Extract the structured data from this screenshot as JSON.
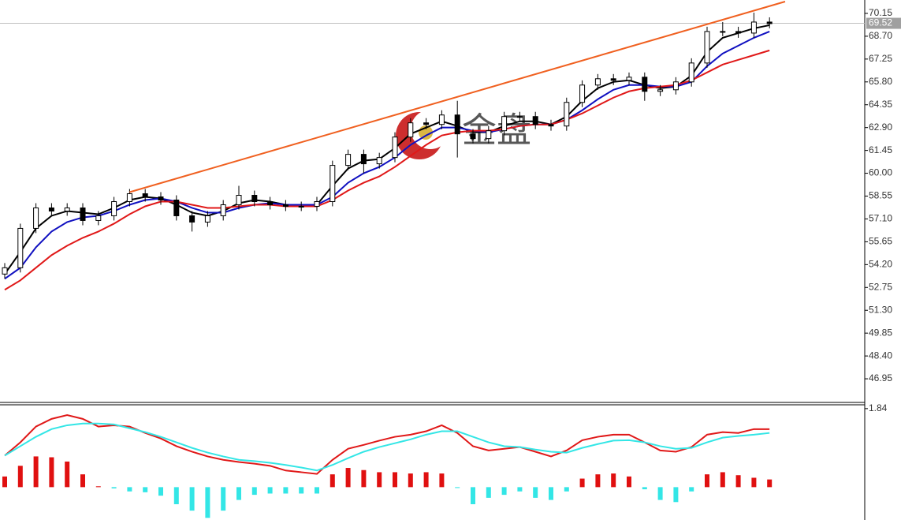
{
  "chart_data": [
    {
      "type": "candlestick",
      "open": [
        53.6,
        54.0,
        56.5,
        57.8,
        57.6,
        57.8,
        57.0,
        57.3,
        58.2,
        58.7,
        58.5,
        58.3,
        57.3,
        56.9,
        57.3,
        58.0,
        58.6,
        58.2,
        58.0,
        57.9,
        57.9,
        58.2,
        60.5,
        61.2,
        60.6,
        61.0,
        62.3,
        63.2,
        63.1,
        63.7,
        62.5,
        62.2,
        62.7,
        63.6,
        63.6,
        63.1,
        63.0,
        64.5,
        65.6,
        66.0,
        65.9,
        66.1,
        65.2,
        65.3,
        65.8,
        67.0,
        69.0,
        69.0,
        68.9,
        69.6
      ],
      "high": [
        54.3,
        56.8,
        58.1,
        58.1,
        58.1,
        58.1,
        57.6,
        58.5,
        59.0,
        59.0,
        58.8,
        58.6,
        57.6,
        57.6,
        58.3,
        59.2,
        58.9,
        58.5,
        58.3,
        58.2,
        58.5,
        60.8,
        61.5,
        61.5,
        61.3,
        62.6,
        63.5,
        63.5,
        64.0,
        64.6,
        62.8,
        63.0,
        63.9,
        63.9,
        63.9,
        63.4,
        64.8,
        65.9,
        66.3,
        66.3,
        66.4,
        66.4,
        65.6,
        66.1,
        67.3,
        69.3,
        69.6,
        69.3,
        70.2,
        69.9
      ],
      "low": [
        53.3,
        53.7,
        56.2,
        57.3,
        57.3,
        56.7,
        56.7,
        57.0,
        57.9,
        58.2,
        58.0,
        57.0,
        56.3,
        56.6,
        57.0,
        57.7,
        57.9,
        57.7,
        57.6,
        57.6,
        57.6,
        57.9,
        60.2,
        60.0,
        60.3,
        60.7,
        62.0,
        62.8,
        62.8,
        61.0,
        61.9,
        61.9,
        62.4,
        63.3,
        62.8,
        62.7,
        62.7,
        64.2,
        65.3,
        65.6,
        65.6,
        64.6,
        64.9,
        65.0,
        65.5,
        66.7,
        68.7,
        68.6,
        68.6,
        69.2
      ],
      "close": [
        54.0,
        56.5,
        57.8,
        57.6,
        57.8,
        57.0,
        57.3,
        58.2,
        58.7,
        58.5,
        58.3,
        57.3,
        56.9,
        57.3,
        58.0,
        58.6,
        58.2,
        58.0,
        57.9,
        57.9,
        58.2,
        60.5,
        61.2,
        60.6,
        61.0,
        62.3,
        63.2,
        63.1,
        63.7,
        62.5,
        62.2,
        62.7,
        63.6,
        63.6,
        63.1,
        63.0,
        64.5,
        65.6,
        66.0,
        65.9,
        66.1,
        65.2,
        65.3,
        65.8,
        67.0,
        69.0,
        69.0,
        68.9,
        69.6,
        69.5
      ],
      "lines": [
        {
          "color": "#000000",
          "values": [
            53.6,
            55.0,
            56.5,
            57.3,
            57.6,
            57.5,
            57.4,
            57.8,
            58.3,
            58.5,
            58.4,
            58.0,
            57.5,
            57.3,
            57.6,
            58.1,
            58.3,
            58.2,
            58.0,
            57.9,
            58.0,
            59.2,
            60.3,
            60.8,
            60.9,
            61.6,
            62.5,
            62.9,
            63.3,
            63.0,
            62.6,
            62.6,
            63.0,
            63.3,
            63.3,
            63.1,
            63.6,
            64.6,
            65.4,
            65.8,
            65.9,
            65.6,
            65.4,
            65.5,
            66.2,
            67.7,
            68.6,
            68.9,
            69.2,
            69.4
          ]
        },
        {
          "color": "#1010c0",
          "values": [
            53.3,
            54.0,
            55.3,
            56.3,
            56.9,
            57.2,
            57.3,
            57.6,
            58.0,
            58.3,
            58.4,
            58.2,
            57.8,
            57.5,
            57.5,
            57.8,
            58.0,
            58.1,
            58.0,
            58.0,
            58.0,
            58.5,
            59.4,
            60.0,
            60.4,
            61.0,
            61.8,
            62.4,
            62.9,
            62.9,
            62.7,
            62.6,
            62.8,
            63.0,
            63.1,
            63.1,
            63.4,
            64.0,
            64.7,
            65.3,
            65.6,
            65.6,
            65.5,
            65.5,
            65.8,
            66.8,
            67.6,
            68.1,
            68.6,
            69.0
          ]
        },
        {
          "color": "#e01818",
          "values": [
            52.6,
            53.2,
            54.0,
            54.8,
            55.4,
            55.9,
            56.3,
            56.8,
            57.4,
            57.9,
            58.2,
            58.2,
            58.0,
            57.8,
            57.8,
            57.9,
            58.0,
            58.0,
            57.9,
            57.9,
            57.9,
            58.3,
            58.9,
            59.4,
            59.8,
            60.4,
            61.1,
            61.8,
            62.4,
            62.6,
            62.7,
            62.7,
            62.8,
            63.0,
            63.1,
            63.1,
            63.4,
            63.8,
            64.3,
            64.8,
            65.2,
            65.4,
            65.5,
            65.6,
            65.9,
            66.4,
            66.9,
            67.2,
            67.5,
            67.8
          ]
        }
      ],
      "trendline": {
        "color": "#f06020",
        "x": [
          8,
          50
        ],
        "y": [
          58.8,
          70.9
        ]
      },
      "last_price": 69.52,
      "watermark": "金盘",
      "ylim": [
        45.45,
        71.0
      ],
      "yticks": [
        70.15,
        {
          "value": 68.7,
          "label": "68.70"
        },
        67.25,
        {
          "value": 65.8,
          "label": "65.80"
        },
        64.35,
        {
          "value": 62.9,
          "label": "62.90"
        },
        61.45,
        {
          "value": 60,
          "label": "60.00"
        },
        58.55,
        {
          "value": 57.1,
          "label": "57.10"
        },
        55.65,
        {
          "value": 54.2,
          "label": "54.20"
        },
        52.75,
        {
          "value": 51.3,
          "label": "51.30"
        },
        49.85,
        {
          "value": 48.4,
          "label": "48.40"
        },
        46.95
      ]
    },
    {
      "type": "macd",
      "histogram": [
        0.25,
        0.5,
        0.72,
        0.7,
        0.6,
        0.3,
        0.02,
        -0.03,
        -0.1,
        -0.12,
        -0.2,
        -0.4,
        -0.55,
        -0.72,
        -0.55,
        -0.3,
        -0.18,
        -0.15,
        -0.15,
        -0.15,
        -0.15,
        0.3,
        0.45,
        0.4,
        0.35,
        0.35,
        0.32,
        0.35,
        0.32,
        -0.02,
        -0.4,
        -0.25,
        -0.18,
        -0.1,
        -0.25,
        -0.3,
        -0.1,
        0.2,
        0.3,
        0.32,
        0.25,
        -0.05,
        -0.3,
        -0.35,
        -0.1,
        0.3,
        0.35,
        0.28,
        0.22,
        0.18
      ],
      "colors": {
        "positive": "#e01010",
        "negative": "#33e6e6"
      },
      "lines": [
        {
          "color": "#e01818",
          "values": [
            0.74,
            1.05,
            1.42,
            1.6,
            1.69,
            1.6,
            1.42,
            1.45,
            1.42,
            1.27,
            1.14,
            0.96,
            0.83,
            0.72,
            0.64,
            0.59,
            0.55,
            0.5,
            0.39,
            0.35,
            0.31,
            0.64,
            0.9,
            0.99,
            1.09,
            1.18,
            1.23,
            1.31,
            1.45,
            1.27,
            0.96,
            0.86,
            0.9,
            0.94,
            0.83,
            0.72,
            0.86,
            1.1,
            1.18,
            1.23,
            1.23,
            1.05,
            0.86,
            0.83,
            0.94,
            1.23,
            1.29,
            1.27,
            1.36,
            1.36
          ]
        },
        {
          "color": "#33e6e6",
          "values": [
            0.74,
            0.96,
            1.18,
            1.36,
            1.45,
            1.49,
            1.49,
            1.47,
            1.38,
            1.29,
            1.18,
            1.05,
            0.92,
            0.81,
            0.72,
            0.64,
            0.61,
            0.57,
            0.52,
            0.46,
            0.39,
            0.52,
            0.68,
            0.83,
            0.94,
            1.03,
            1.12,
            1.23,
            1.31,
            1.31,
            1.18,
            1.05,
            0.96,
            0.94,
            0.88,
            0.83,
            0.81,
            0.92,
            1.01,
            1.09,
            1.1,
            1.05,
            0.96,
            0.9,
            0.92,
            1.05,
            1.16,
            1.2,
            1.23,
            1.27
          ]
        }
      ],
      "ylim": [
        -0.77,
        1.93
      ],
      "yticks": [
        1.84
      ]
    }
  ]
}
